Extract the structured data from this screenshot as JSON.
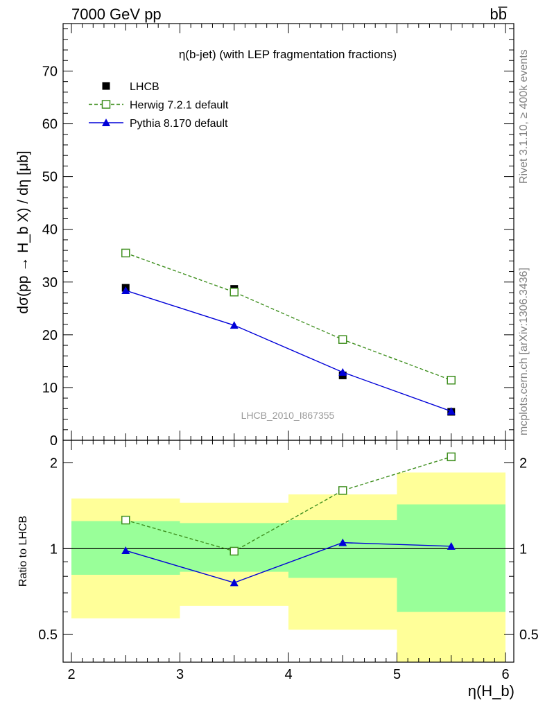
{
  "header": {
    "left": "7000 GeV pp",
    "right": "bb̅"
  },
  "side_labels": {
    "rivet": "Rivet 3.1.10, ≥ 400k events",
    "source": "mcplots.cern.ch [arXiv:1306.3436]"
  },
  "chart_data": [
    {
      "type": "line",
      "title": "η(b-jet) (with LEP fragmentation fractions)",
      "watermark": "LHCB_2010_I867355",
      "ylabel": "dσ(pp → H_b X) / dη [μb]",
      "xlim": [
        2,
        6
      ],
      "ylim": [
        0,
        79
      ],
      "yticks": [
        0,
        10,
        20,
        30,
        40,
        50,
        60,
        70
      ],
      "grid": false,
      "legend_position": "top-left",
      "x": [
        2.5,
        3.5,
        4.5,
        5.5
      ],
      "series": [
        {
          "name": "LHCB",
          "style": "points",
          "marker": "filled-square",
          "color": "#000000",
          "values": [
            28.9,
            28.7,
            12.3,
            5.4
          ]
        },
        {
          "name": "Herwig 7.2.1 default",
          "style": "dashed",
          "marker": "open-square",
          "color": "#3f8f1f",
          "values": [
            35.5,
            28.1,
            19.1,
            11.4
          ]
        },
        {
          "name": "Pythia 8.170 default",
          "style": "solid",
          "marker": "filled-triangle",
          "color": "#0000d8",
          "values": [
            28.4,
            21.8,
            12.9,
            5.5
          ]
        }
      ]
    },
    {
      "type": "line",
      "ylabel": "Ratio to LHCB",
      "xlabel": "η(H_b)",
      "xlim": [
        2,
        6
      ],
      "ylim": [
        0.4,
        2.4
      ],
      "yscale": "log",
      "xticks": [
        2,
        3,
        4,
        5,
        6
      ],
      "yticks": [
        0.5,
        1,
        2
      ],
      "reference_line": 1,
      "x": [
        2.5,
        3.5,
        4.5,
        5.5
      ],
      "bands": {
        "bins": [
          [
            2,
            3
          ],
          [
            3,
            4
          ],
          [
            4,
            5
          ],
          [
            5,
            6
          ]
        ],
        "yellow": {
          "color": "#ffff99",
          "low": [
            0.57,
            0.63,
            0.52,
            0.35
          ],
          "high": [
            1.5,
            1.45,
            1.55,
            1.85
          ]
        },
        "green": {
          "color": "#99ff99",
          "low": [
            0.81,
            0.83,
            0.79,
            0.6
          ],
          "high": [
            1.25,
            1.23,
            1.26,
            1.43
          ]
        }
      },
      "series": [
        {
          "name": "Herwig 7.2.1 default",
          "style": "dashed",
          "marker": "open-square",
          "color": "#3f8f1f",
          "values": [
            1.26,
            0.98,
            1.6,
            2.1
          ]
        },
        {
          "name": "Pythia 8.170 default",
          "style": "solid",
          "marker": "filled-triangle",
          "color": "#0000d8",
          "values": [
            0.985,
            0.76,
            1.05,
            1.02
          ]
        }
      ]
    }
  ]
}
